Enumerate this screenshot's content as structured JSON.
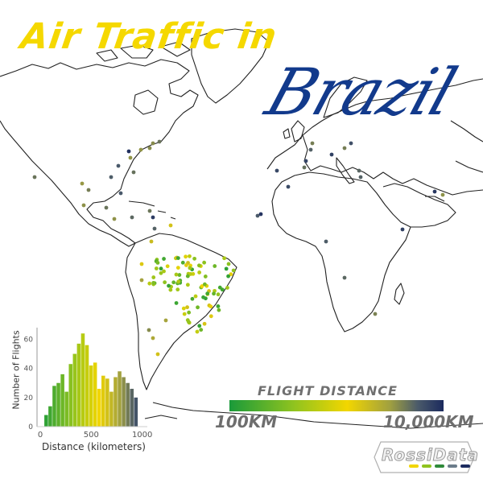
{
  "title": {
    "line1": "Air Traffic in",
    "line2": "Brazil"
  },
  "colors": {
    "title_yellow": "#f5d800",
    "title_blue": "#123a8c",
    "land_outline": "#222222",
    "scale_low": "#1a9a3a",
    "scale_mid": "#f2d600",
    "scale_high": "#1b2a5e"
  },
  "legend": {
    "title": "FLIGHT DISTANCE",
    "min_label": "100KM",
    "max_label": "10,000KM"
  },
  "logo": {
    "text": "RossiData",
    "stripe_colors": [
      "#f2d600",
      "#8fc31f",
      "#2f8a3a",
      "#6b7c8a",
      "#1b2a5e"
    ]
  },
  "chart_data": {
    "type": "bar",
    "title": "",
    "xlabel": "Distance (kilometers)",
    "ylabel": "Number of Flights",
    "xlim": [
      0,
      1050
    ],
    "ylim": [
      0,
      68
    ],
    "xticks": [
      0,
      500,
      1000
    ],
    "yticks": [
      0,
      20,
      40,
      60
    ],
    "grid": false,
    "bin_width": 40,
    "x": [
      60,
      100,
      140,
      180,
      220,
      260,
      300,
      340,
      380,
      420,
      460,
      500,
      540,
      580,
      620,
      660,
      700,
      740,
      780,
      820,
      860,
      900,
      940
    ],
    "values": [
      8,
      14,
      28,
      30,
      36,
      24,
      43,
      50,
      57,
      64,
      56,
      42,
      44,
      26,
      35,
      33,
      24,
      34,
      38,
      34,
      30,
      26,
      20
    ]
  }
}
